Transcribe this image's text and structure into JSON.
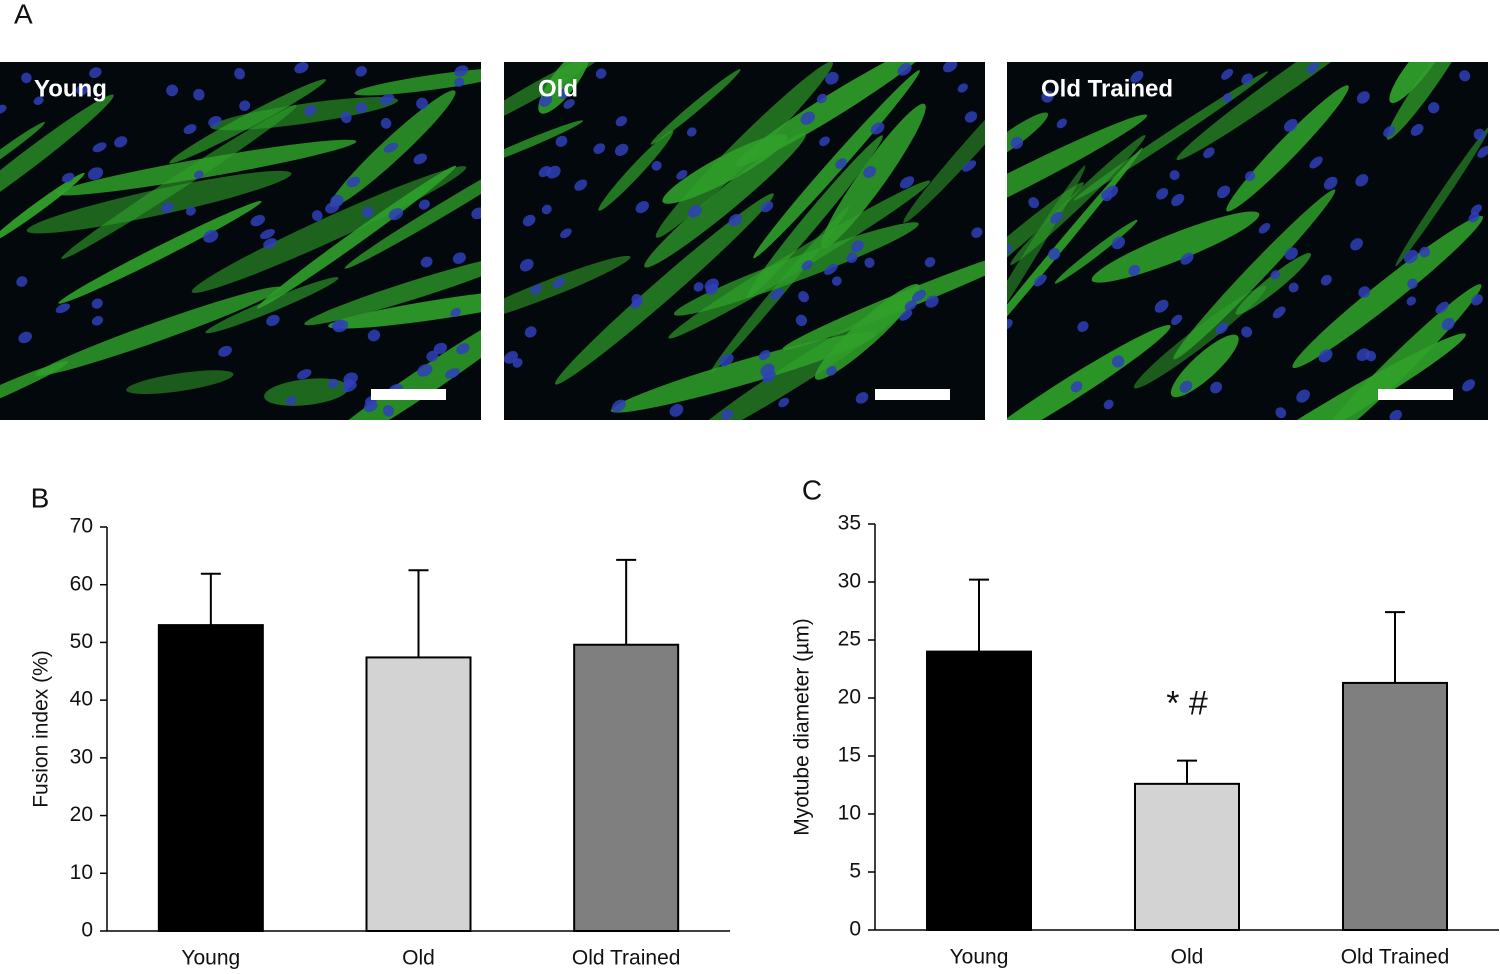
{
  "images": {
    "panel_label": "A",
    "labels": [
      "Young",
      "Old",
      "Old Trained"
    ]
  },
  "chart_data": [
    {
      "type": "bar",
      "panel_label": "B",
      "ylabel": "Fusion index (%)",
      "categories": [
        "Young",
        "Old",
        "Old Trained"
      ],
      "values": [
        53,
        47.4,
        49.6
      ],
      "errors": [
        8.9,
        15.1,
        14.7
      ],
      "colors": [
        "#000000",
        "#d3d3d3",
        "#7f7f7f"
      ],
      "ylim": [
        0,
        70
      ],
      "yticks": [
        0,
        10,
        20,
        30,
        40,
        50,
        60,
        70
      ]
    },
    {
      "type": "bar",
      "panel_label": "C",
      "ylabel": "Myotube diameter (µm)",
      "categories": [
        "Young",
        "Old",
        "Old Trained"
      ],
      "values": [
        24,
        12.6,
        21.3
      ],
      "errors": [
        6.2,
        2.0,
        6.1
      ],
      "colors": [
        "#000000",
        "#d3d3d3",
        "#7f7f7f"
      ],
      "annotation_labels": [
        null,
        "* #",
        null
      ],
      "ylim": [
        0,
        35
      ],
      "yticks": [
        0,
        5,
        10,
        15,
        20,
        25,
        30,
        35
      ]
    }
  ]
}
